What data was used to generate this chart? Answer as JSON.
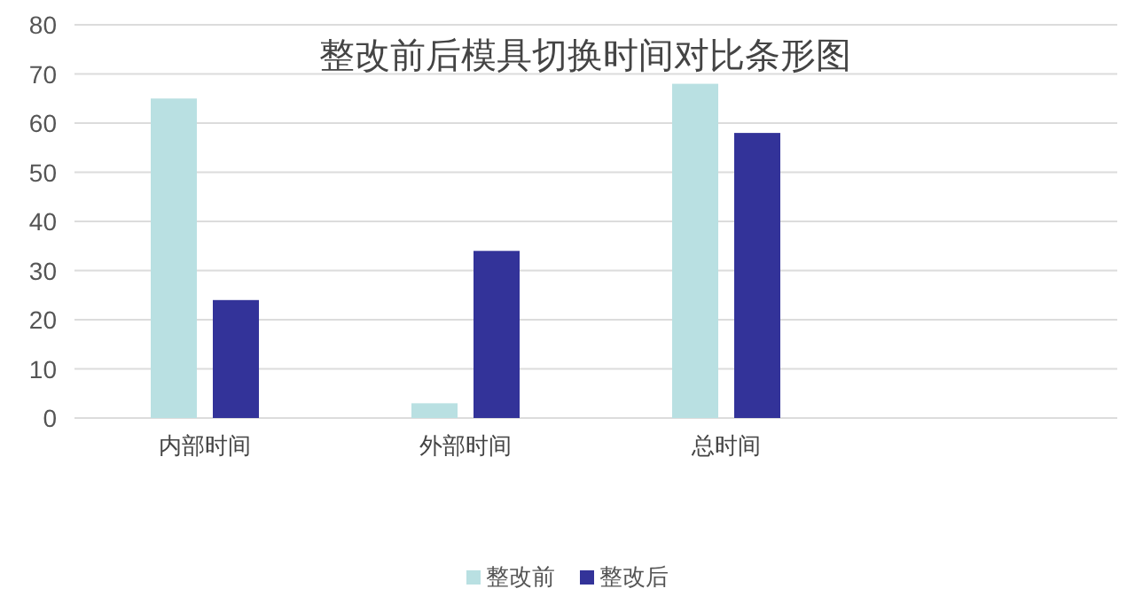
{
  "chart_data": {
    "type": "bar",
    "title": "整改前后模具切换时间对比条形图",
    "categories": [
      "内部时间",
      "外部时间",
      "总时间",
      null
    ],
    "series": [
      {
        "name": "整改前",
        "color": "#b9e0e2",
        "values": [
          65,
          3,
          68,
          null
        ]
      },
      {
        "name": "整改后",
        "color": "#333399",
        "values": [
          24,
          34,
          58,
          null
        ]
      }
    ],
    "ylim": [
      0,
      80
    ],
    "yticks": [
      0,
      10,
      20,
      30,
      40,
      50,
      60,
      70,
      80
    ],
    "grid": "y",
    "legend": "bottom"
  }
}
